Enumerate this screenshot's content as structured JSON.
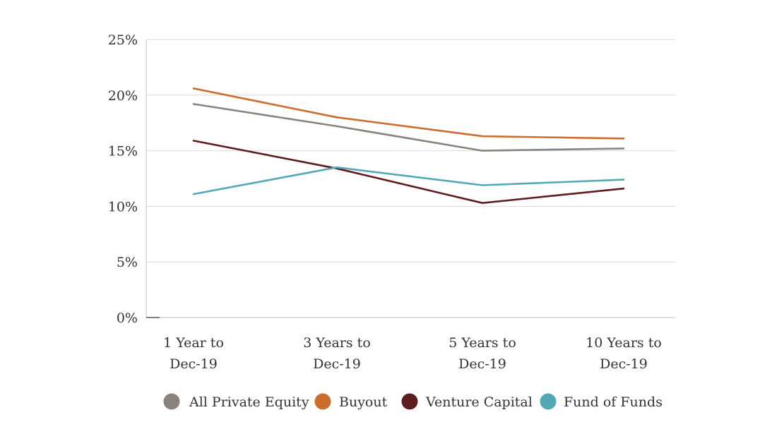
{
  "chart_data": {
    "type": "line",
    "categories": [
      [
        "1 Year to",
        "Dec-19"
      ],
      [
        "3 Years to",
        "Dec-19"
      ],
      [
        "5 Years to",
        "Dec-19"
      ],
      [
        "10 Years to",
        "Dec-19"
      ]
    ],
    "ylim": [
      0,
      25
    ],
    "yticks": [
      0,
      5,
      10,
      15,
      20,
      25
    ],
    "ytick_labels": [
      "0%",
      "5%",
      "10%",
      "15%",
      "20%",
      "25%"
    ],
    "grid": true,
    "legend_position": "bottom",
    "series": [
      {
        "name": "All Private Equity",
        "color": "#8a837c",
        "values": [
          19.2,
          17.2,
          15.0,
          15.2
        ]
      },
      {
        "name": "Buyout",
        "color": "#cc6d2d",
        "values": [
          20.6,
          18.0,
          16.3,
          16.1
        ]
      },
      {
        "name": "Venture Capital",
        "color": "#5e1b20",
        "values": [
          15.9,
          13.4,
          10.3,
          11.6
        ]
      },
      {
        "name": "Fund of Funds",
        "color": "#52a9b5",
        "values": [
          11.1,
          13.5,
          11.9,
          12.4
        ]
      }
    ]
  }
}
